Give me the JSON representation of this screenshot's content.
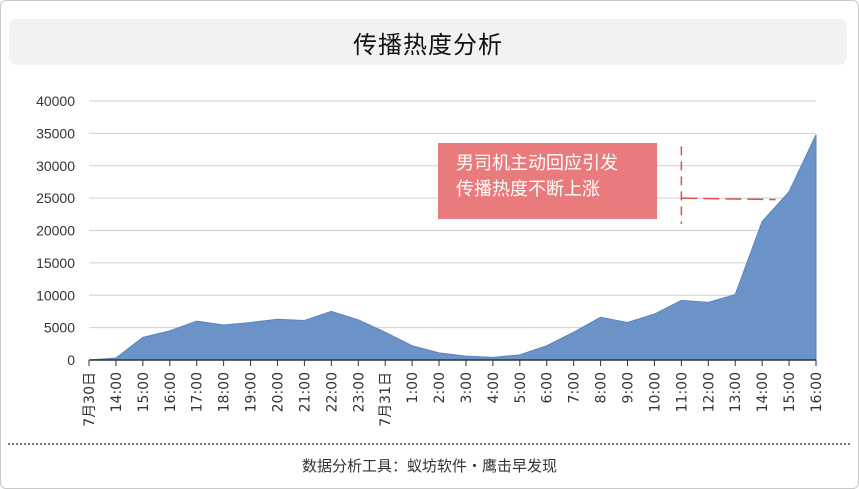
{
  "title": "传播热度分析",
  "footer": "数据分析工具：蚁坊软件・鹰击早发现",
  "annotation": {
    "lines": [
      "男司机主动回应引发",
      "传播热度不断上涨"
    ],
    "target_category": "11:00",
    "target_value": 25000
  },
  "colors": {
    "area_fill": "#6b93c8",
    "area_stroke": "#5b85bf",
    "callout_bg": "#e97b7d",
    "annotation_line": "#d9534f",
    "grid": "#cfcfcf",
    "axis": "#333333"
  },
  "chart_data": {
    "type": "area",
    "title": "",
    "xlabel": "",
    "ylabel": "",
    "ylim": [
      0,
      40000
    ],
    "yticks": [
      0,
      5000,
      10000,
      15000,
      20000,
      25000,
      30000,
      35000,
      40000
    ],
    "grid": true,
    "categories": [
      "7月30日",
      "14:00",
      "15:00",
      "16:00",
      "17:00",
      "18:00",
      "19:00",
      "20:00",
      "21:00",
      "22:00",
      "23:00",
      "7月31日",
      "1:00",
      "2:00",
      "3:00",
      "4:00",
      "5:00",
      "6:00",
      "7:00",
      "8:00",
      "9:00",
      "10:00",
      "11:00",
      "12:00",
      "13:00",
      "14:00",
      "15:00",
      "16:00"
    ],
    "series": [
      {
        "values": [
          0,
          300,
          3500,
          4500,
          6000,
          5400,
          5800,
          6300,
          6100,
          7500,
          6200,
          4300,
          2200,
          1100,
          600,
          400,
          800,
          2200,
          4300,
          6600,
          5800,
          7100,
          9200,
          8900,
          10100,
          21400,
          26000,
          34800
        ]
      }
    ]
  }
}
